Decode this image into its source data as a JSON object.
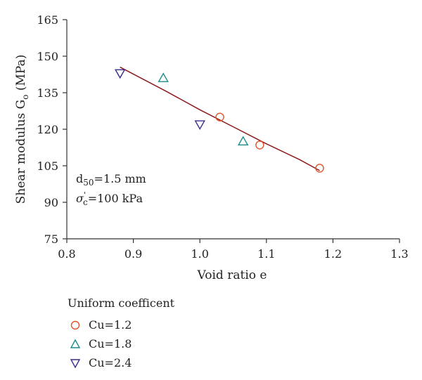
{
  "chart_data": {
    "type": "scatter",
    "xlabel": "Void ratio e",
    "ylabel": "Shear modulus G",
    "ylabel_sub": "o",
    "ylabel_unit": " (MPa)",
    "xlim": [
      0.8,
      1.3
    ],
    "ylim": [
      75,
      165
    ],
    "xticks": [
      "0.8",
      "0.9",
      "1.0",
      "1.1",
      "1.2",
      "1.3"
    ],
    "yticks": [
      "75",
      "90",
      "105",
      "120",
      "135",
      "150",
      "165"
    ],
    "grid": false,
    "series": [
      {
        "name": "Cu=1.2",
        "marker": "circle",
        "color": "#e0552b",
        "x": [
          1.03,
          1.09,
          1.18
        ],
        "y": [
          125,
          113.5,
          104
        ]
      },
      {
        "name": "Cu=1.8",
        "marker": "triangle-up",
        "color": "#1e8c8c",
        "x": [
          0.945,
          1.065
        ],
        "y": [
          141,
          115
        ]
      },
      {
        "name": "Cu=2.4",
        "marker": "triangle-down",
        "color": "#3a2d8a",
        "x": [
          0.88,
          1.0
        ],
        "y": [
          143,
          122
        ]
      }
    ],
    "fit_line": {
      "color": "#8b1a1a",
      "x": [
        0.88,
        0.95,
        1.0,
        1.05,
        1.1,
        1.15,
        1.18
      ],
      "y": [
        145.5,
        135.5,
        128,
        121,
        114,
        107.5,
        103
      ]
    },
    "annotations": {
      "d50": {
        "base": "d",
        "sub": "50",
        "rest": "=1.5 mm"
      },
      "sigma": {
        "base": "σ",
        "sup": "'",
        "sub": "c",
        "rest": "=100 kPa"
      }
    },
    "legend": {
      "title": "Uniform coefficent",
      "placement": "bottom-left"
    }
  }
}
